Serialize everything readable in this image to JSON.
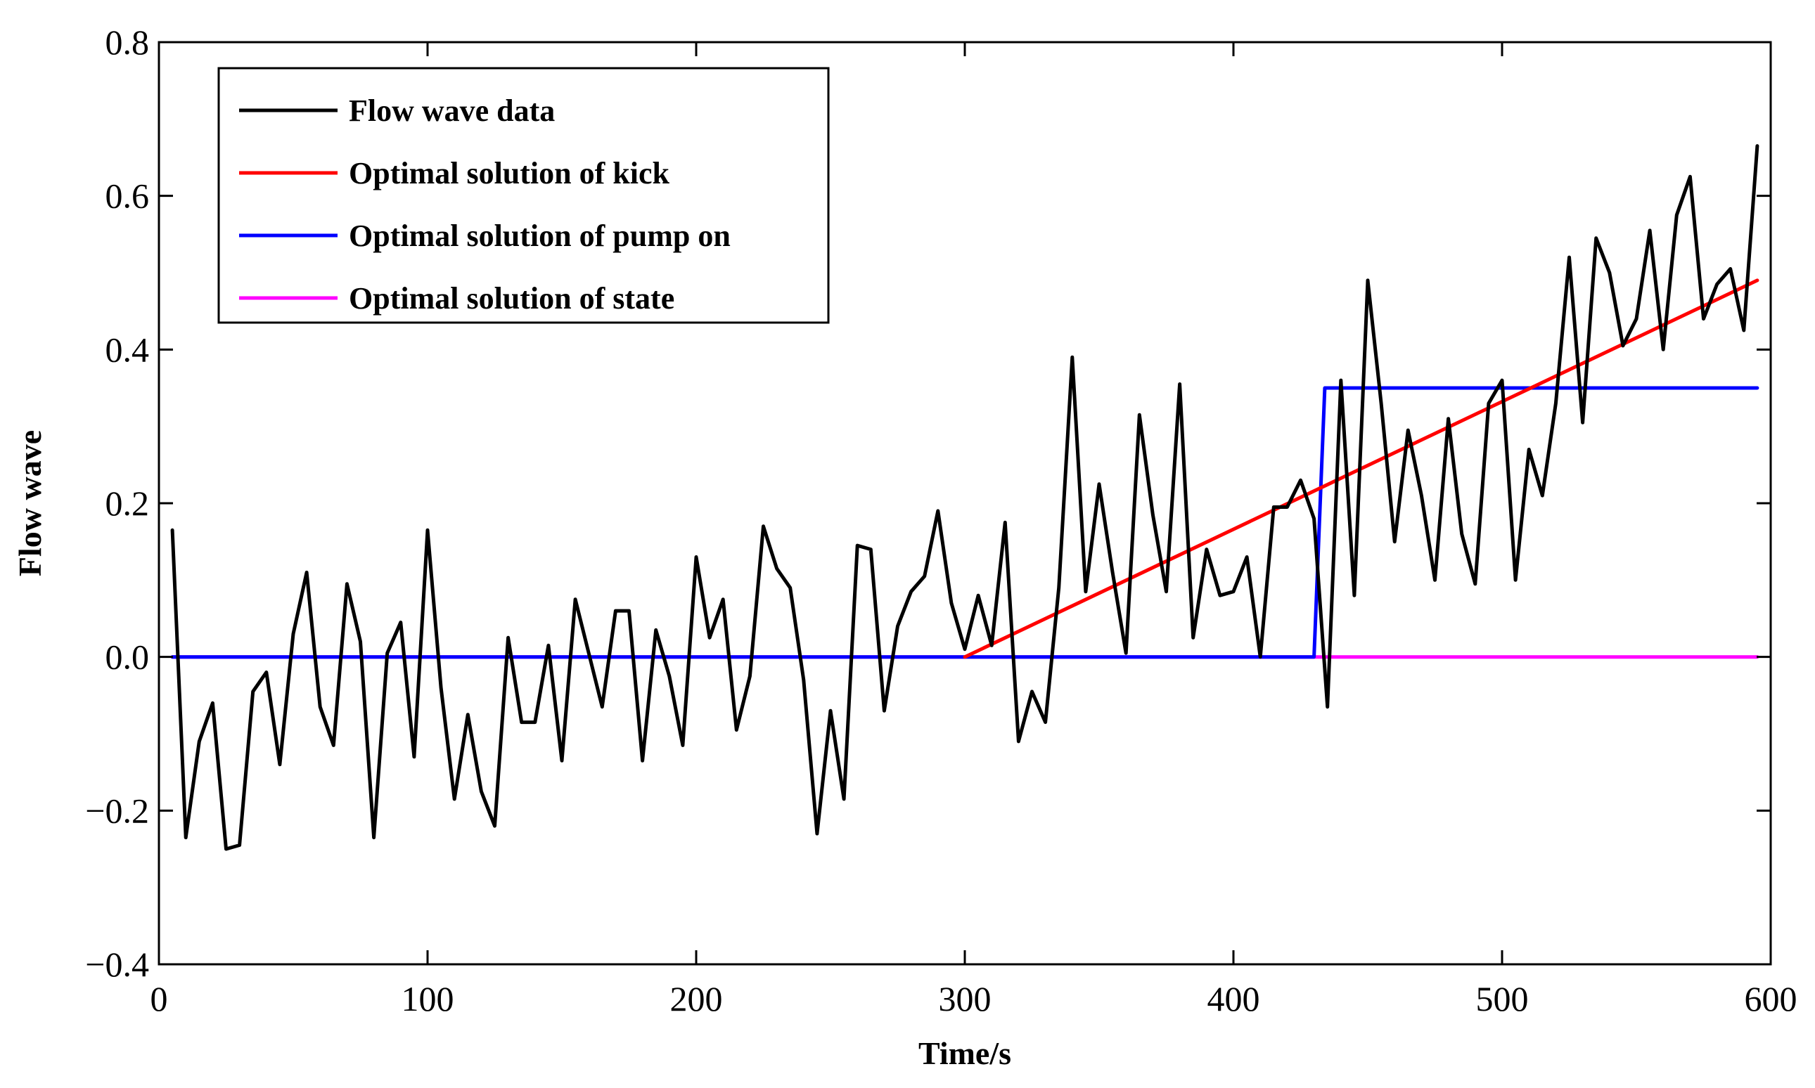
{
  "chart_data": {
    "type": "line",
    "title": "",
    "xlabel": "Time/s",
    "ylabel": "Flow wave",
    "xlim": [
      0,
      600
    ],
    "ylim": [
      -0.4,
      0.8
    ],
    "x_ticks": [
      0,
      100,
      200,
      300,
      400,
      500,
      600
    ],
    "x_tick_labels": [
      "0",
      "100",
      "200",
      "300",
      "400",
      "500",
      "600"
    ],
    "y_ticks": [
      -0.4,
      -0.2,
      0.0,
      0.2,
      0.4,
      0.6,
      0.8
    ],
    "y_tick_labels": [
      "−0.4",
      "−0.2",
      "0.0",
      "0.2",
      "0.4",
      "0.6",
      "0.8"
    ],
    "grid": false,
    "legend_position": "top-left",
    "series": [
      {
        "name": "Flow wave data",
        "color": "#000000",
        "x": [
          5,
          10,
          15,
          20,
          25,
          30,
          35,
          40,
          45,
          50,
          55,
          60,
          65,
          70,
          75,
          80,
          85,
          90,
          95,
          100,
          105,
          110,
          115,
          120,
          125,
          130,
          135,
          140,
          145,
          150,
          155,
          160,
          165,
          170,
          175,
          180,
          185,
          190,
          195,
          200,
          205,
          210,
          215,
          220,
          225,
          230,
          235,
          240,
          245,
          250,
          255,
          260,
          265,
          270,
          275,
          280,
          285,
          290,
          295,
          300,
          305,
          310,
          315,
          320,
          325,
          330,
          335,
          340,
          345,
          350,
          355,
          360,
          365,
          370,
          375,
          380,
          385,
          390,
          395,
          400,
          405,
          410,
          415,
          420,
          425,
          430,
          435,
          440,
          445,
          450,
          455,
          460,
          465,
          470,
          475,
          480,
          485,
          490,
          495,
          500,
          505,
          510,
          515,
          520,
          525,
          530,
          535,
          540,
          545,
          550,
          555,
          560,
          565,
          570,
          575,
          580,
          585,
          590,
          595
        ],
        "y": [
          0.165,
          -0.235,
          -0.11,
          -0.06,
          -0.25,
          -0.245,
          -0.045,
          -0.02,
          -0.14,
          0.03,
          0.11,
          -0.065,
          -0.115,
          0.095,
          0.02,
          -0.235,
          0.005,
          0.045,
          -0.13,
          0.165,
          -0.04,
          -0.185,
          -0.075,
          -0.175,
          -0.22,
          0.025,
          -0.085,
          -0.085,
          0.015,
          -0.135,
          0.075,
          0.005,
          -0.065,
          0.06,
          0.06,
          -0.135,
          0.035,
          -0.025,
          -0.115,
          0.13,
          0.025,
          0.075,
          -0.095,
          -0.025,
          0.17,
          0.115,
          0.09,
          -0.03,
          -0.23,
          -0.07,
          -0.185,
          0.145,
          0.14,
          -0.07,
          0.04,
          0.085,
          0.105,
          0.19,
          0.07,
          0.01,
          0.08,
          0.015,
          0.175,
          -0.11,
          -0.045,
          -0.085,
          0.09,
          0.39,
          0.085,
          0.225,
          0.11,
          0.005,
          0.315,
          0.185,
          0.085,
          0.355,
          0.025,
          0.14,
          0.08,
          0.085,
          0.13,
          0.0,
          0.195,
          0.195,
          0.23,
          0.18,
          -0.065,
          0.36,
          0.08,
          0.49,
          0.33,
          0.15,
          0.295,
          0.21,
          0.1,
          0.31,
          0.16,
          0.095,
          0.33,
          0.36,
          0.1,
          0.27,
          0.21,
          0.33,
          0.52,
          0.305,
          0.545,
          0.5,
          0.405,
          0.44,
          0.555,
          0.4,
          0.575,
          0.625,
          0.44,
          0.485,
          0.505,
          0.425,
          0.665
        ]
      },
      {
        "name": "Optimal solution of kick",
        "color": "#ff0000",
        "x": [
          300,
          595
        ],
        "y": [
          0.0,
          0.49
        ]
      },
      {
        "name": "Optimal solution of pump on",
        "color": "#0000ff",
        "x": [
          5,
          430,
          434,
          595
        ],
        "y": [
          0.0,
          0.0,
          0.35,
          0.35
        ]
      },
      {
        "name": "Optimal solution of state",
        "color": "#ff00ff",
        "x": [
          5,
          595
        ],
        "y": [
          0.0,
          0.0
        ]
      }
    ]
  }
}
